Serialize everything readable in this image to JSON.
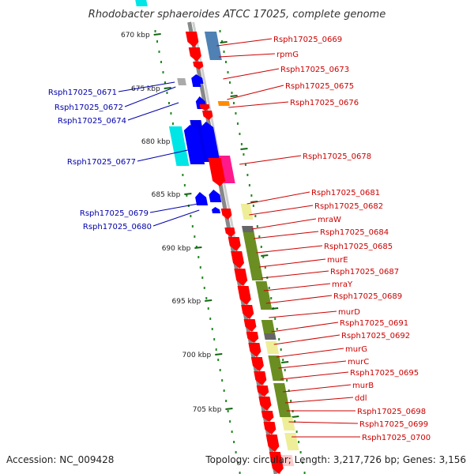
{
  "title": "Rhodobacter sphaeroides ATCC 17025, complete genome",
  "footer": {
    "accession": "Accession: NC_009428",
    "topology": "Topology: circular; Length: 3,217,726 bp; Genes: 3,156"
  },
  "colors": {
    "forward_arrow": "#ff0000",
    "reverse_arrow": "#0000ff",
    "left_label": "#0000aa",
    "right_label": "#cc0000",
    "axis": "#888888",
    "dots": "#228822"
  },
  "scale": [
    {
      "label": "670 kbp"
    },
    {
      "label": "675 kbp"
    },
    {
      "label": "680 kbp"
    },
    {
      "label": "685 kbp"
    },
    {
      "label": "690 kbp"
    },
    {
      "label": "695 kbp"
    },
    {
      "label": "700 kbp"
    },
    {
      "label": "705 kbp"
    }
  ],
  "right_labels": [
    "Rsph17025_0669",
    "rpmG",
    "Rsph17025_0673",
    "Rsph17025_0675",
    "Rsph17025_0676",
    "Rsph17025_0678",
    "Rsph17025_0681",
    "Rsph17025_0682",
    "mraW",
    "Rsph17025_0684",
    "Rsph17025_0685",
    "murE",
    "Rsph17025_0687",
    "mraY",
    "Rsph17025_0689",
    "murD",
    "Rsph17025_0691",
    "Rsph17025_0692",
    "murG",
    "murC",
    "Rsph17025_0695",
    "murB",
    "ddl",
    "Rsph17025_0698",
    "Rsph17025_0699",
    "Rsph17025_0700"
  ],
  "left_labels": [
    "Rsph17025_0671",
    "Rsph17025_0672",
    "Rsph17025_0674",
    "Rsph17025_0677",
    "Rsph17025_0679",
    "Rsph17025_0680"
  ]
}
